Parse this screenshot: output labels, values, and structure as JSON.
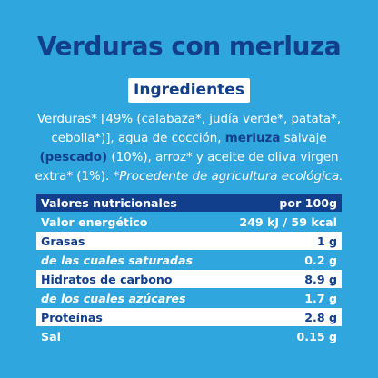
{
  "title": "Verduras con merluza",
  "ingredients_heading": "Ingredientes",
  "ingredients": {
    "part1": "Verduras* [49% (calabaza*, judía verde*, patata*, cebolla*)], agua de cocción, ",
    "merluza": "merluza",
    "part2": " salvaje ",
    "pescado": "(pescado)",
    "part3": " (10%), arroz* y aceite de oliva virgen extra* (1%). ",
    "note": "*Procedente de agricultura ecológica."
  },
  "nutrition": {
    "header": {
      "label": "Valores nutricionales",
      "value": "por 100g"
    },
    "rows": [
      {
        "label": "Valor energético",
        "value": "249 kJ / 59 kcal"
      },
      {
        "label": "Grasas",
        "value": "1 g"
      },
      {
        "label": "de las cuales saturadas",
        "value": "0.2 g"
      },
      {
        "label": "Hidratos de carbono",
        "value": "8.9 g"
      },
      {
        "label": "de los cuales azúcares",
        "value": "1.7 g"
      },
      {
        "label": "Proteínas",
        "value": "2.8 g"
      },
      {
        "label": "Sal",
        "value": "0.15 g"
      }
    ]
  },
  "colors": {
    "background": "#2fa6dd",
    "navy": "#123f8c",
    "white": "#ffffff"
  }
}
